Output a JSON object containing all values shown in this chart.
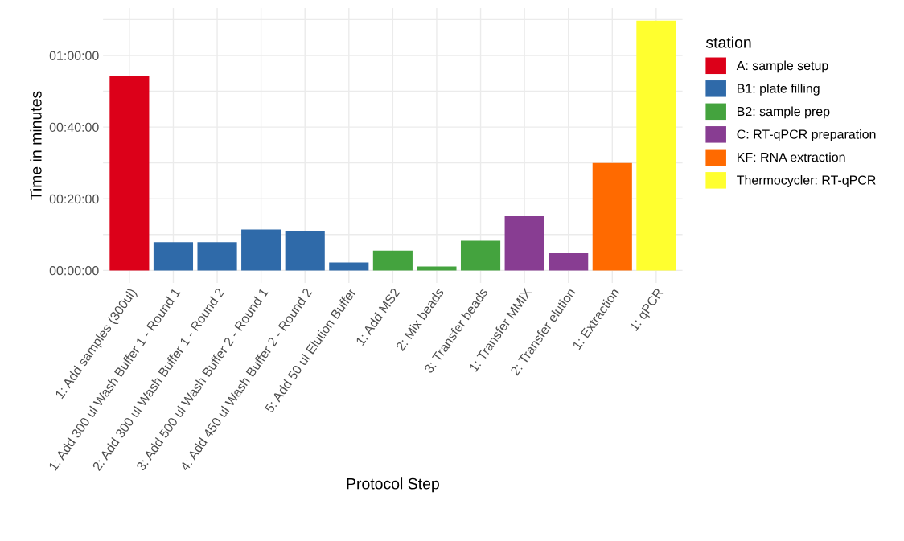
{
  "chart_data": {
    "type": "bar",
    "xlabel": "Protocol Step",
    "ylabel": "Time in minutes",
    "legend_title": "station",
    "legend": "right",
    "grid": true,
    "categories": [
      "1: Add samples (300ul)",
      "1: Add 300 ul Wash Buffer 1 - Round 1",
      "2: Add 300 ul Wash Buffer 1 - Round 2",
      "3: Add 500 ul Wash Buffer 2 - Round 1",
      "4: Add 450 ul Wash Buffer 2 - Round 2",
      "5: Add 50 ul Elution Buffer",
      "1: Add MS2",
      "2: Mix beads",
      "3: Transfer beads",
      "1: Transfer MMIX",
      "2: Transfer elution",
      "1: Extraction",
      "1: qPCR"
    ],
    "ylim": [
      -3.5,
      73.2
    ],
    "yticks": [
      {
        "value": 0,
        "label": "00:00:00"
      },
      {
        "value": 10,
        "label": null
      },
      {
        "value": 20,
        "label": "00:20:00"
      },
      {
        "value": 30,
        "label": null
      },
      {
        "value": 40,
        "label": "00:40:00"
      },
      {
        "value": 50,
        "label": null
      },
      {
        "value": 60,
        "label": "01:00:00"
      },
      {
        "value": 70,
        "label": null
      }
    ],
    "series": [
      {
        "name": "A: sample setup",
        "color": "#dc0019",
        "values": [
          54.2,
          null,
          null,
          null,
          null,
          null,
          null,
          null,
          null,
          null,
          null,
          null,
          null
        ]
      },
      {
        "name": "B1: plate filling",
        "color": "#2f6aa9",
        "values": [
          null,
          7.9,
          7.9,
          11.4,
          11.1,
          2.2,
          null,
          null,
          null,
          null,
          null,
          null,
          null
        ]
      },
      {
        "name": "B2: sample prep",
        "color": "#44a33e",
        "values": [
          null,
          null,
          null,
          null,
          null,
          null,
          5.5,
          1.1,
          8.3,
          null,
          null,
          null,
          null
        ]
      },
      {
        "name": "C: RT-qPCR preparation",
        "color": "#883d92",
        "values": [
          null,
          null,
          null,
          null,
          null,
          null,
          null,
          null,
          null,
          15.1,
          4.8,
          null,
          null
        ]
      },
      {
        "name": "KF: RNA extraction",
        "color": "#ff6a00",
        "values": [
          null,
          null,
          null,
          null,
          null,
          null,
          null,
          null,
          null,
          null,
          null,
          30,
          null
        ]
      },
      {
        "name": "Thermocycler: RT-qPCR",
        "color": "#ffff2f",
        "values": [
          null,
          null,
          null,
          null,
          null,
          null,
          null,
          null,
          null,
          null,
          null,
          null,
          69.7
        ]
      }
    ]
  }
}
